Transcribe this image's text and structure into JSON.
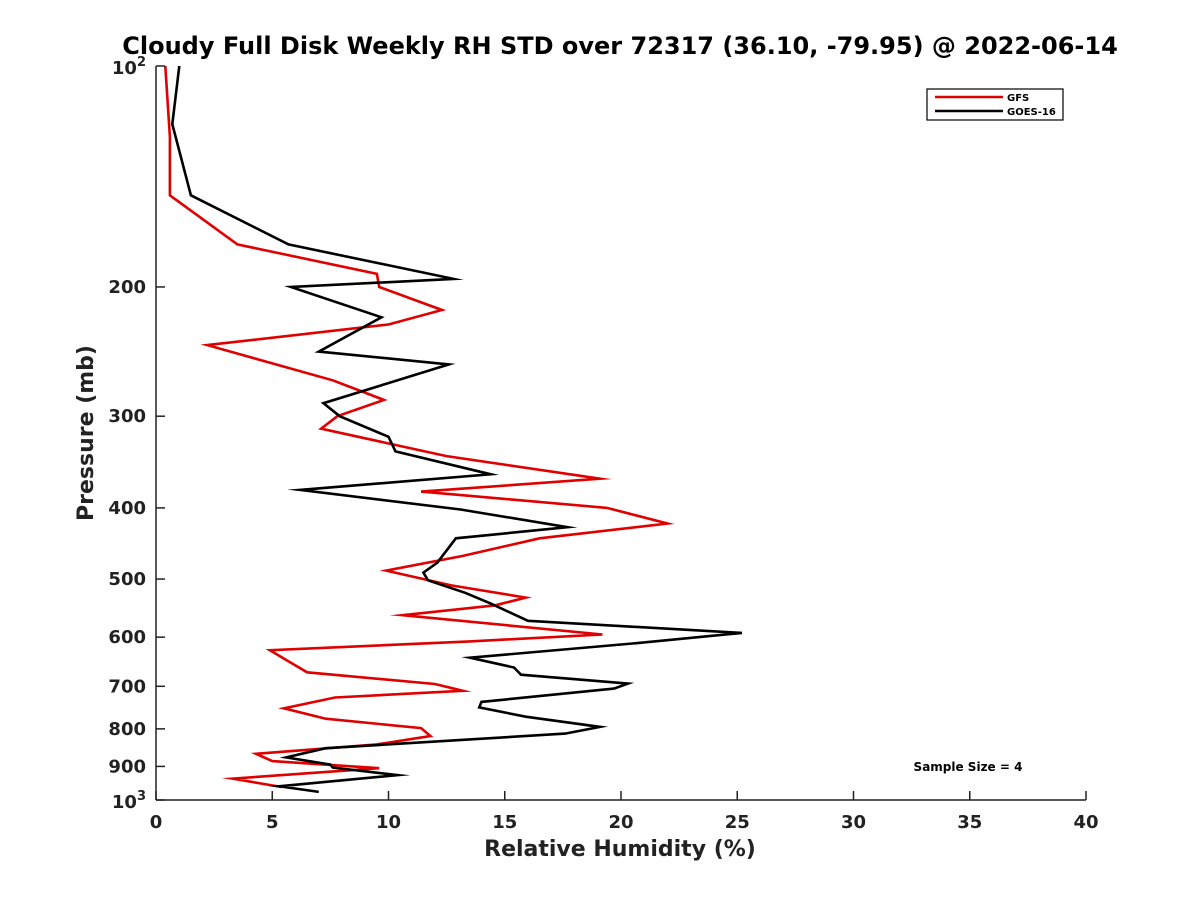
{
  "chart_data": {
    "type": "line",
    "title": "Cloudy Full Disk Weekly RH STD over 72317 (36.10, -79.95) @ 2022-06-14",
    "xlabel": "Relative Humidity (%)",
    "ylabel": "Pressure (mb)",
    "xlim": [
      0,
      40
    ],
    "ylim": [
      100,
      1000
    ],
    "yscale": "log",
    "y_reversed": true,
    "x_ticks": [
      "0",
      "5",
      "10",
      "15",
      "20",
      "25",
      "30",
      "35",
      "40"
    ],
    "y_ticks": [
      {
        "value": 100,
        "base": "10",
        "exp": "2"
      },
      {
        "value": 200,
        "label": "200"
      },
      {
        "value": 300,
        "label": "300"
      },
      {
        "value": 400,
        "label": "400"
      },
      {
        "value": 500,
        "label": "500"
      },
      {
        "value": 600,
        "label": "600"
      },
      {
        "value": 700,
        "label": "700"
      },
      {
        "value": 800,
        "label": "800"
      },
      {
        "value": 900,
        "label": "900"
      },
      {
        "value": 1000,
        "base": "10",
        "exp": "3"
      }
    ],
    "grid": false,
    "legend_position": "top-right",
    "annotation": "Sample Size = 4",
    "series": [
      {
        "name": "GFS",
        "color": "#e00000",
        "points": [
          [
            0.4,
            100
          ],
          [
            0.6,
            125
          ],
          [
            0.6,
            150
          ],
          [
            3.5,
            175
          ],
          [
            9.5,
            192
          ],
          [
            9.6,
            200
          ],
          [
            12.3,
            215
          ],
          [
            10.0,
            225
          ],
          [
            2.2,
            240
          ],
          [
            7.6,
            268
          ],
          [
            9.8,
            285
          ],
          [
            7.8,
            300
          ],
          [
            7.1,
            312
          ],
          [
            12.5,
            340
          ],
          [
            19.1,
            365
          ],
          [
            11.4,
            380
          ],
          [
            19.4,
            400
          ],
          [
            22.0,
            420
          ],
          [
            16.5,
            440
          ],
          [
            13.2,
            465
          ],
          [
            9.9,
            487
          ],
          [
            12.7,
            510
          ],
          [
            15.9,
            530
          ],
          [
            14.6,
            543
          ],
          [
            10.6,
            560
          ],
          [
            19.2,
            595
          ],
          [
            13.5,
            608
          ],
          [
            4.9,
            625
          ],
          [
            5.8,
            650
          ],
          [
            6.5,
            670
          ],
          [
            12.0,
            695
          ],
          [
            13.2,
            710
          ],
          [
            7.7,
            725
          ],
          [
            5.5,
            750
          ],
          [
            7.3,
            775
          ],
          [
            11.4,
            798
          ],
          [
            11.8,
            818
          ],
          [
            9.5,
            840
          ],
          [
            4.3,
            865
          ],
          [
            5.0,
            885
          ],
          [
            9.6,
            905
          ],
          [
            3.3,
            935
          ],
          [
            5.4,
            960
          ]
        ]
      },
      {
        "name": "GOES-16",
        "color": "#000000",
        "points": [
          [
            1.0,
            100
          ],
          [
            0.7,
            120
          ],
          [
            1.5,
            150
          ],
          [
            5.7,
            175
          ],
          [
            12.8,
            195
          ],
          [
            5.8,
            200
          ],
          [
            9.7,
            220
          ],
          [
            7.0,
            245
          ],
          [
            12.6,
            255
          ],
          [
            7.2,
            288
          ],
          [
            7.9,
            300
          ],
          [
            10.0,
            320
          ],
          [
            10.3,
            335
          ],
          [
            14.4,
            360
          ],
          [
            6.2,
            378
          ],
          [
            13.1,
            402
          ],
          [
            17.7,
            425
          ],
          [
            12.9,
            440
          ],
          [
            12.1,
            475
          ],
          [
            11.5,
            490
          ],
          [
            11.7,
            502
          ],
          [
            13.3,
            522
          ],
          [
            14.4,
            540
          ],
          [
            16.0,
            570
          ],
          [
            25.2,
            592
          ],
          [
            20.5,
            612
          ],
          [
            13.5,
            640
          ],
          [
            15.4,
            660
          ],
          [
            15.7,
            675
          ],
          [
            20.3,
            694
          ],
          [
            19.7,
            705
          ],
          [
            14.0,
            735
          ],
          [
            13.9,
            748
          ],
          [
            15.9,
            770
          ],
          [
            19.1,
            795
          ],
          [
            17.6,
            812
          ],
          [
            7.3,
            850
          ],
          [
            5.6,
            875
          ],
          [
            7.5,
            895
          ],
          [
            7.6,
            903
          ],
          [
            10.4,
            925
          ],
          [
            5.3,
            958
          ],
          [
            7.0,
            975
          ]
        ]
      }
    ]
  }
}
